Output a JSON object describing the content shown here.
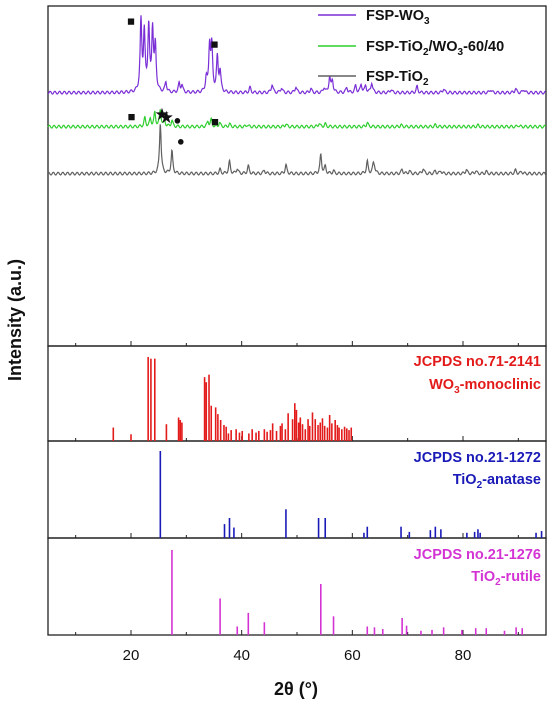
{
  "chart_data": [
    {
      "type": "line",
      "panel": "xrd-patterns",
      "legend_position": "top-right",
      "ylabel": "Intensity (a.u.)",
      "ylim_note": "arbitrary units, stacked/offset, no tick labels",
      "series": [
        {
          "name": "FSP-WO",
          "name_sub": "3",
          "name_tail": "",
          "color": "#7a2fd6",
          "baseline": 0.745,
          "peaks": [
            [
              21.8,
              0.205
            ],
            [
              22.4,
              0.17
            ],
            [
              23.2,
              0.19
            ],
            [
              23.9,
              0.18
            ],
            [
              24.4,
              0.13
            ],
            [
              26.3,
              0.03
            ],
            [
              28.7,
              0.025
            ],
            [
              29.2,
              0.022
            ],
            [
              33.6,
              0.04
            ],
            [
              34.2,
              0.135
            ],
            [
              34.6,
              0.13
            ],
            [
              35.6,
              0.1
            ],
            [
              36.1,
              0.06
            ],
            [
              41.5,
              0.015
            ],
            [
              45.5,
              0.025
            ],
            [
              47.2,
              0.015
            ],
            [
              49.8,
              0.018
            ],
            [
              52.5,
              0.012
            ],
            [
              54.9,
              0.015
            ],
            [
              55.9,
              0.045
            ],
            [
              56.4,
              0.035
            ],
            [
              59.0,
              0.015
            ],
            [
              60.6,
              0.02
            ],
            [
              61.6,
              0.024
            ],
            [
              62.4,
              0.02
            ],
            [
              63.5,
              0.03
            ],
            [
              67.0,
              0.01
            ],
            [
              71.7,
              0.018
            ],
            [
              76.5,
              0.012
            ],
            [
              85.0,
              0.01
            ],
            [
              89.5,
              0.012
            ],
            [
              91.0,
              0.01
            ]
          ]
        },
        {
          "name": "FSP-TiO",
          "name_sub": "2",
          "name_tail": "/WO₃-60/40",
          "color": "#2fcf2f",
          "baseline": 0.645,
          "peaks": [
            [
              22.5,
              0.025
            ],
            [
              23.5,
              0.022
            ],
            [
              24.3,
              0.04
            ],
            [
              25.3,
              0.05
            ],
            [
              26.1,
              0.015
            ],
            [
              27.4,
              0.018
            ],
            [
              33.9,
              0.015
            ],
            [
              34.5,
              0.02
            ],
            [
              36.0,
              0.012
            ],
            [
              37.8,
              0.008
            ],
            [
              41.0,
              0.006
            ],
            [
              48.0,
              0.008
            ],
            [
              54.0,
              0.01
            ],
            [
              55.1,
              0.008
            ],
            [
              62.7,
              0.012
            ],
            [
              68.8,
              0.005
            ],
            [
              75.0,
              0.005
            ],
            [
              82.7,
              0.004
            ],
            [
              90.0,
              0.004
            ]
          ]
        },
        {
          "name": "FSP-TiO",
          "name_sub": "2",
          "name_tail": "",
          "color": "#606060",
          "baseline": 0.507,
          "peaks": [
            [
              25.3,
              0.15
            ],
            [
              27.4,
              0.065
            ],
            [
              36.1,
              0.012
            ],
            [
              37.8,
              0.035
            ],
            [
              39.2,
              0.015
            ],
            [
              41.2,
              0.022
            ],
            [
              44.1,
              0.01
            ],
            [
              48.0,
              0.025
            ],
            [
              54.3,
              0.055
            ],
            [
              55.1,
              0.02
            ],
            [
              56.6,
              0.008
            ],
            [
              62.7,
              0.035
            ],
            [
              63.8,
              0.025
            ],
            [
              64.0,
              0.015
            ],
            [
              69.0,
              0.012
            ],
            [
              70.3,
              0.008
            ],
            [
              72.8,
              0.015
            ],
            [
              75.0,
              0.008
            ],
            [
              76.0,
              0.008
            ],
            [
              80.6,
              0.012
            ],
            [
              82.3,
              0.008
            ],
            [
              84.2,
              0.006
            ],
            [
              89.5,
              0.01
            ],
            [
              90.6,
              0.006
            ]
          ]
        }
      ],
      "markers": [
        {
          "symbol": "■",
          "x": 20.0,
          "y": 0.958
        },
        {
          "symbol": "■",
          "x": 35.1,
          "y": 0.889
        },
        {
          "symbol": "■",
          "x": 20.1,
          "y": 0.676
        },
        {
          "symbol": "■",
          "x": 35.2,
          "y": 0.662
        },
        {
          "symbol": "★",
          "x": 25.6,
          "y": 0.679
        },
        {
          "symbol": "●",
          "x": 28.4,
          "y": 0.666
        },
        {
          "symbol": "★",
          "x": 26.4,
          "y": 0.67
        },
        {
          "symbol": "●",
          "x": 29.0,
          "y": 0.605
        }
      ]
    },
    {
      "type": "bar",
      "panel": "reference-pattern",
      "title_line1": "JCPDS no.71-2141",
      "title_line2_main": "WO",
      "title_line2_sub": "3",
      "title_line2_tail": "-monoclinic",
      "color": "#e31a1a",
      "x": [
        16.8,
        20.0,
        23.1,
        23.6,
        24.3,
        26.4,
        28.6,
        28.9,
        29.2,
        33.3,
        33.6,
        34.1,
        34.5,
        35.3,
        35.7,
        36.2,
        36.8,
        37.2,
        37.6,
        38.1,
        39.0,
        39.6,
        40.1,
        41.3,
        41.9,
        42.6,
        43.1,
        44.1,
        44.6,
        45.2,
        45.6,
        46.3,
        47.0,
        47.3,
        47.9,
        48.4,
        49.2,
        49.6,
        49.9,
        50.3,
        50.6,
        51.0,
        51.5,
        52.0,
        52.3,
        52.8,
        53.3,
        53.8,
        54.2,
        54.6,
        55.0,
        55.5,
        55.9,
        56.3,
        56.9,
        57.3,
        57.6,
        58.1,
        58.6,
        59.0,
        59.4,
        59.8
      ],
      "values": [
        0.16,
        0.08,
        1.0,
        0.98,
        0.98,
        0.2,
        0.28,
        0.25,
        0.22,
        0.76,
        0.7,
        0.79,
        0.42,
        0.4,
        0.32,
        0.25,
        0.19,
        0.17,
        0.09,
        0.13,
        0.14,
        0.1,
        0.12,
        0.09,
        0.14,
        0.1,
        0.12,
        0.14,
        0.11,
        0.13,
        0.21,
        0.12,
        0.18,
        0.21,
        0.14,
        0.33,
        0.26,
        0.45,
        0.37,
        0.22,
        0.28,
        0.2,
        0.14,
        0.26,
        0.18,
        0.34,
        0.26,
        0.19,
        0.22,
        0.27,
        0.18,
        0.16,
        0.31,
        0.21,
        0.25,
        0.19,
        0.16,
        0.14,
        0.17,
        0.15,
        0.13,
        0.16
      ]
    },
    {
      "type": "bar",
      "panel": "reference-pattern",
      "title_line1": "JCPDS no.21-1272",
      "title_line2_main": "TiO",
      "title_line2_sub": "2",
      "title_line2_tail": "-anatase",
      "color": "#1a1ab8",
      "x": [
        25.3,
        36.9,
        37.8,
        38.6,
        48.0,
        53.9,
        55.1,
        62.1,
        62.7,
        68.8,
        70.3,
        74.1,
        75.0,
        76.0,
        80.7,
        82.1,
        82.7,
        83.1,
        93.2,
        94.2
      ],
      "values": [
        1.0,
        0.16,
        0.23,
        0.12,
        0.33,
        0.23,
        0.23,
        0.06,
        0.13,
        0.13,
        0.07,
        0.09,
        0.13,
        0.1,
        0.06,
        0.07,
        0.1,
        0.06,
        0.06,
        0.08
      ]
    },
    {
      "type": "bar",
      "panel": "reference-pattern",
      "title_line1": "JCPDS no.21-1276",
      "title_line2_main": "TiO",
      "title_line2_sub": "2",
      "title_line2_tail": "-rutile",
      "color": "#d433d4",
      "x": [
        27.4,
        36.1,
        39.2,
        41.2,
        44.1,
        54.3,
        56.6,
        62.7,
        64.0,
        65.5,
        69.0,
        69.8,
        72.4,
        74.4,
        76.5,
        79.8,
        82.3,
        84.2,
        87.5,
        89.6,
        90.7
      ],
      "values": [
        1.0,
        0.43,
        0.1,
        0.26,
        0.15,
        0.6,
        0.22,
        0.1,
        0.09,
        0.07,
        0.2,
        0.11,
        0.05,
        0.06,
        0.09,
        0.06,
        0.08,
        0.08,
        0.05,
        0.09,
        0.08
      ]
    }
  ],
  "axes": {
    "xlabel": "2θ (°)",
    "xlim": [
      5,
      95
    ],
    "xticks": [
      20,
      40,
      60,
      80
    ]
  }
}
